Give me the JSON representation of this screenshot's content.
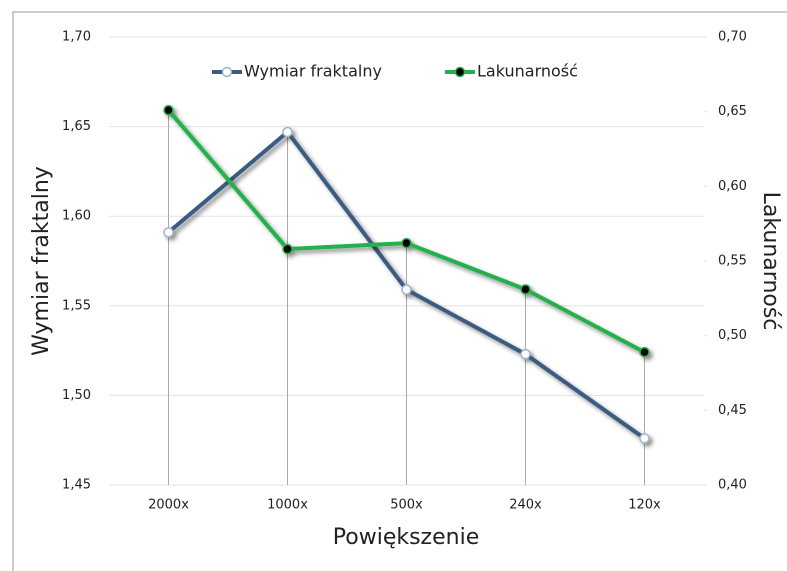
{
  "chart_data": {
    "type": "line",
    "x_label": "Powiększenie",
    "y_label": "Wymiar fraktalny",
    "y2_label": "Lakunarność",
    "categories": [
      "2000x",
      "1000x",
      "500x",
      "240x",
      "120x"
    ],
    "series": [
      {
        "name": "Wymiar fraktalny",
        "color": "#3b5b82",
        "values": [
          1.591,
          1.647,
          1.559,
          1.523,
          1.476
        ]
      },
      {
        "name": "Lakunarność",
        "color": "#22b14c",
        "axis": "y2",
        "values": [
          0.651,
          0.558,
          0.562,
          0.531,
          0.489
        ]
      }
    ],
    "ylim": [
      1.45,
      1.7
    ],
    "yticks": [
      {
        "value": 1.45,
        "label": "1,45"
      },
      {
        "value": 1.5,
        "label": "1,50"
      },
      {
        "value": 1.55,
        "label": "1,55"
      },
      {
        "value": 1.6,
        "label": "1,60"
      },
      {
        "value": 1.65,
        "label": "1,65"
      },
      {
        "value": 1.7,
        "label": "1,70"
      }
    ],
    "y2lim": [
      0.4,
      0.7
    ],
    "y2ticks": [
      {
        "value": 0.4,
        "label": "0,40"
      },
      {
        "value": 0.45,
        "label": "0,45"
      },
      {
        "value": 0.5,
        "label": "0,50"
      },
      {
        "value": 0.55,
        "label": "0,55"
      },
      {
        "value": 0.6,
        "label": "0,60"
      },
      {
        "value": 0.65,
        "label": "0,65"
      },
      {
        "value": 0.7,
        "label": "0,70"
      }
    ],
    "grid": true,
    "legend": "top"
  }
}
